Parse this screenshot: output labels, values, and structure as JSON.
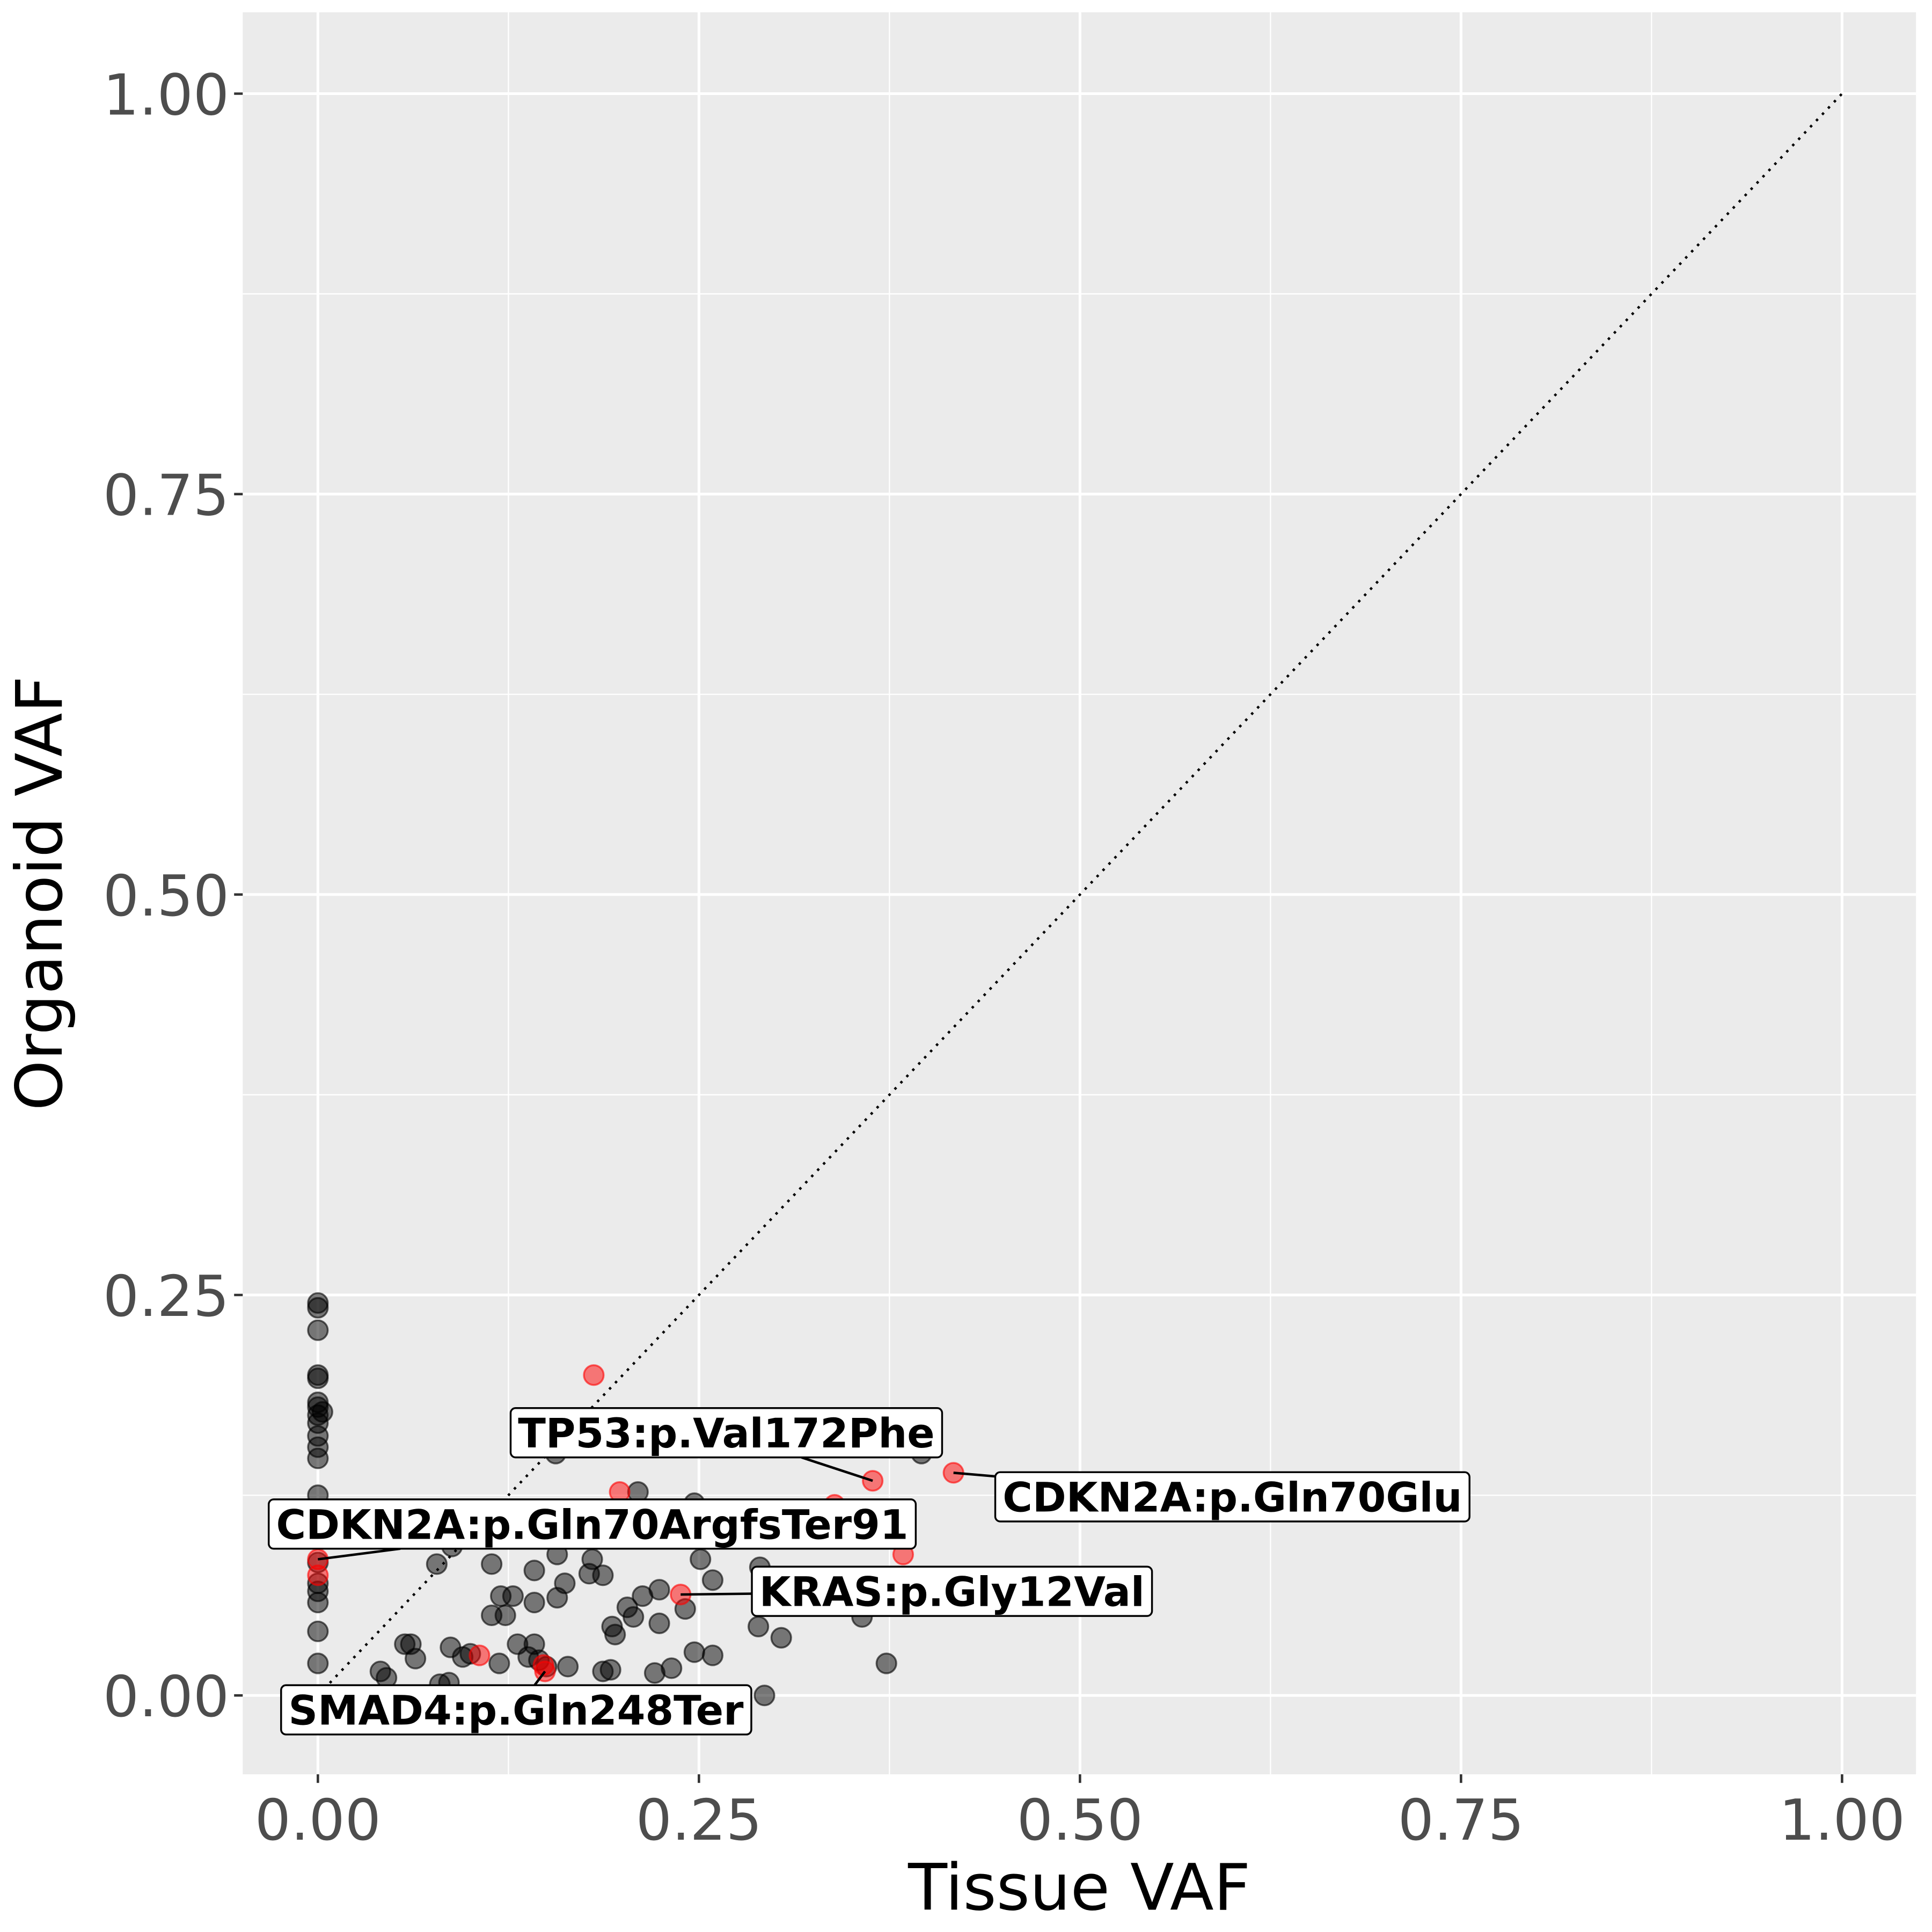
{
  "chart_data": {
    "type": "scatter",
    "title": "",
    "xlabel": "Tissue VAF",
    "ylabel": "Organoid VAF",
    "xlim": [
      -0.05,
      1.05
    ],
    "ylim": [
      -0.05,
      1.05
    ],
    "xticks": [
      "0.00",
      "0.25",
      "0.50",
      "0.75",
      "1.00"
    ],
    "yticks": [
      "0.00",
      "0.25",
      "0.50",
      "0.75",
      "1.00"
    ],
    "tick_values": [
      0,
      0.25,
      0.5,
      0.75,
      1.0
    ],
    "grid": true,
    "reference_line": {
      "type": "identity",
      "style": "dotted",
      "from": [
        0,
        0
      ],
      "to": [
        1,
        1
      ]
    },
    "colors": {
      "background": "#ebebeb",
      "grid": "#ffffff",
      "other": "#000000",
      "highlight": "#ff0000"
    },
    "series": [
      {
        "name": "other",
        "color": "#000000",
        "points": [
          [
            0,
            0.245
          ],
          [
            0,
            0.242
          ],
          [
            0,
            0.228
          ],
          [
            0,
            0.2
          ],
          [
            0,
            0.198
          ],
          [
            0,
            0.183
          ],
          [
            0,
            0.18
          ],
          [
            0.003,
            0.177
          ],
          [
            0,
            0.175
          ],
          [
            0,
            0.17
          ],
          [
            0,
            0.162
          ],
          [
            0,
            0.155
          ],
          [
            0,
            0.148
          ],
          [
            0,
            0.125
          ],
          [
            0,
            0.083
          ],
          [
            0,
            0.07
          ],
          [
            0,
            0.065
          ],
          [
            0,
            0.058
          ],
          [
            0,
            0.04
          ],
          [
            0,
            0.02
          ],
          [
            0.078,
            0.082
          ],
          [
            0.088,
            0.093
          ],
          [
            0.114,
            0.082
          ],
          [
            0.114,
            0.05
          ],
          [
            0.123,
            0.05
          ],
          [
            0.12,
            0.062
          ],
          [
            0.128,
            0.062
          ],
          [
            0.142,
            0.078
          ],
          [
            0.142,
            0.058
          ],
          [
            0.157,
            0.061
          ],
          [
            0.157,
            0.088
          ],
          [
            0.162,
            0.07
          ],
          [
            0.178,
            0.076
          ],
          [
            0.187,
            0.075
          ],
          [
            0.18,
            0.085
          ],
          [
            0.156,
            0.151
          ],
          [
            0.193,
            0.043
          ],
          [
            0.195,
            0.038
          ],
          [
            0.203,
            0.055
          ],
          [
            0.207,
            0.049
          ],
          [
            0.213,
            0.062
          ],
          [
            0.224,
            0.066
          ],
          [
            0.224,
            0.045
          ],
          [
            0.21,
            0.127
          ],
          [
            0.241,
            0.054
          ],
          [
            0.247,
            0.12
          ],
          [
            0.251,
            0.085
          ],
          [
            0.259,
            0.072
          ],
          [
            0.29,
            0.08
          ],
          [
            0.289,
            0.043
          ],
          [
            0.304,
            0.036
          ],
          [
            0.357,
            0.049
          ],
          [
            0.373,
            0.02
          ],
          [
            0.396,
            0.151
          ],
          [
            0.247,
            0.027
          ],
          [
            0.259,
            0.025
          ],
          [
            0.293,
            0.0
          ],
          [
            0.041,
            0.015
          ],
          [
            0.045,
            0.011
          ],
          [
            0.057,
            0.032
          ],
          [
            0.061,
            0.032
          ],
          [
            0.064,
            0.023
          ],
          [
            0.08,
            0.007
          ],
          [
            0.086,
            0.008
          ],
          [
            0.087,
            0.03
          ],
          [
            0.095,
            0.024
          ],
          [
            0.1,
            0.026
          ],
          [
            0.119,
            0.02
          ],
          [
            0.131,
            0.032
          ],
          [
            0.138,
            0.024
          ],
          [
            0.142,
            0.032
          ],
          [
            0.145,
            0.022
          ],
          [
            0.15,
            0.018
          ],
          [
            0.164,
            0.018
          ],
          [
            0.187,
            0.015
          ],
          [
            0.192,
            0.016
          ],
          [
            0.221,
            0.014
          ],
          [
            0.232,
            0.017
          ]
        ]
      },
      {
        "name": "highlight",
        "color": "#ff0000",
        "points": [
          [
            0,
            0.085
          ],
          [
            0,
            0.075
          ],
          [
            0.181,
            0.2
          ],
          [
            0.198,
            0.127
          ],
          [
            0.339,
            0.119
          ],
          [
            0.364,
            0.134
          ],
          [
            0.417,
            0.139
          ],
          [
            0.384,
            0.088
          ],
          [
            0.238,
            0.063
          ],
          [
            0.106,
            0.025
          ],
          [
            0.148,
            0.019
          ],
          [
            0.149,
            0.015
          ]
        ]
      }
    ],
    "annotations": [
      {
        "text": "TP53:p.Val172Phe",
        "point": [
          0.364,
          0.134
        ],
        "label_at": [
          0.268,
          0.164
        ]
      },
      {
        "text": "CDKN2A:p.Gln70Glu",
        "point": [
          0.417,
          0.139
        ],
        "label_at": [
          0.6,
          0.124
        ]
      },
      {
        "text": "CDKN2A:p.Gln70ArgfsTer91",
        "point": [
          0,
          0.085
        ],
        "label_at": [
          0.18,
          0.107
        ]
      },
      {
        "text": "KRAS:p.Gly12Val",
        "point": [
          0.238,
          0.063
        ],
        "label_at": [
          0.416,
          0.065
        ]
      },
      {
        "text": "SMAD4:p.Gln248Ter",
        "point": [
          0.149,
          0.015
        ],
        "label_at": [
          0.13,
          -0.009
        ]
      }
    ]
  }
}
